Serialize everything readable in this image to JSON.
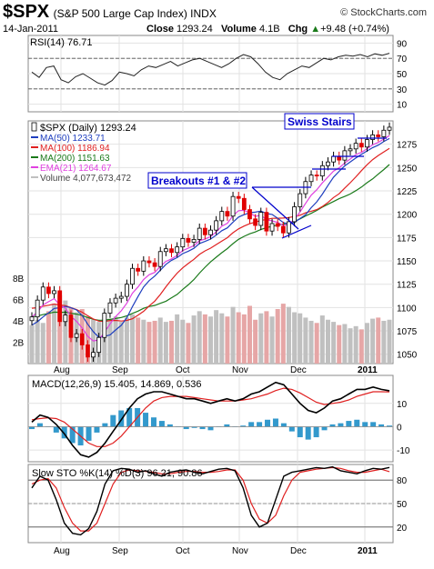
{
  "header": {
    "symbol": "$SPX",
    "name": "(S&P 500 Large Cap Index) INDX",
    "brand": "© StockCharts.com",
    "date": "14-Jan-2011",
    "close_label": "Close",
    "close_value": "1293.24",
    "volume_label": "Volume",
    "volume_value": "4.1B",
    "chg_label": "Chg",
    "chg_value": "+9.48 (+0.74%)",
    "chg_arrow": "▲"
  },
  "colors": {
    "ma50": "#1f3fbf",
    "ma100": "#e02020",
    "ma200": "#1a7a1a",
    "ema21": "#e040e0",
    "candle_up": "#000000",
    "candle_down": "#e00000",
    "volume_bar": "#c0c0c0",
    "annotation": "#0000cc",
    "macd_hist": "#3399cc"
  },
  "chart_data": [
    {
      "type": "line",
      "panel": "RSI",
      "title": "RSI(14) 76.71",
      "ylim": [
        0,
        100
      ],
      "yticks": [
        10,
        30,
        50,
        70,
        90
      ],
      "ref_lines": [
        30,
        70
      ],
      "series": [
        {
          "name": "RSI(14)",
          "values": [
            52,
            45,
            58,
            60,
            42,
            38,
            46,
            50,
            44,
            38,
            35,
            41,
            52,
            50,
            47,
            55,
            60,
            58,
            62,
            66,
            60,
            64,
            68,
            70,
            66,
            62,
            58,
            63,
            70,
            75,
            72,
            63,
            52,
            45,
            42,
            50,
            55,
            60,
            58,
            64,
            70,
            68,
            72,
            74,
            73,
            75,
            72,
            76,
            74,
            76.71
          ]
        }
      ]
    },
    {
      "type": "candlestick",
      "panel": "Price",
      "title": "$SPX (Daily) 1293.24",
      "ylim": [
        1040,
        1300
      ],
      "yticks": [
        1050,
        1075,
        1100,
        1125,
        1150,
        1175,
        1200,
        1225,
        1250,
        1275
      ],
      "x_tick_labels": [
        "Aug",
        "Sep",
        "Oct",
        "Nov",
        "Dec",
        "2011"
      ],
      "legend": [
        {
          "name": "$SPX (Daily) 1293.24",
          "swatch": "candle"
        },
        {
          "name": "MA(50) 1233.71",
          "color_key": "ma50"
        },
        {
          "name": "MA(100) 1186.94",
          "color_key": "ma100"
        },
        {
          "name": "MA(200) 1151.63",
          "color_key": "ma200"
        },
        {
          "name": "EMA(21) 1264.67",
          "color_key": "ema21"
        },
        {
          "name": "Volume 4,077,673,472",
          "color_key": "volume_bar"
        }
      ],
      "annotations": [
        "Swiss Stairs",
        "Breakouts #1 & #2"
      ],
      "close": [
        1090,
        1108,
        1122,
        1115,
        1118,
        1085,
        1092,
        1068,
        1072,
        1060,
        1047,
        1052,
        1068,
        1094,
        1105,
        1110,
        1112,
        1125,
        1142,
        1139,
        1150,
        1148,
        1144,
        1160,
        1163,
        1159,
        1165,
        1174,
        1170,
        1173,
        1185,
        1178,
        1183,
        1193,
        1203,
        1198,
        1219,
        1217,
        1205,
        1195,
        1188,
        1202,
        1182,
        1190,
        1187,
        1180,
        1192,
        1208,
        1222,
        1235,
        1242,
        1241,
        1252,
        1256,
        1262,
        1258,
        1268,
        1270,
        1276,
        1272,
        1280,
        1285,
        1283,
        1290,
        1293.24
      ],
      "volume_secondary_axis": {
        "ticks": [
          2,
          4,
          6,
          8
        ],
        "unit": "B"
      },
      "volume": [
        3.6,
        4.1,
        3.8,
        4.9,
        5.6,
        6.4,
        5.9,
        5.2,
        4.8,
        5.1,
        4.4,
        4.1,
        3.9,
        4.6,
        4.2,
        4.4,
        3.9,
        4.3,
        4.6,
        4.3,
        4.1,
        3.9,
        4.0,
        4.3,
        3.9,
        4.0,
        4.6,
        4.1,
        3.8,
        4.5,
        4.9,
        4.6,
        4.4,
        5.0,
        4.7,
        4.4,
        5.3,
        4.8,
        4.6,
        5.4,
        4.1,
        4.7,
        4.9,
        4.4,
        5.1,
        5.6,
        5.3,
        4.8,
        4.7,
        4.3,
        4.0,
        3.8,
        4.5,
        4.1,
        3.9,
        3.6,
        3.7,
        3.3,
        3.5,
        3.2,
        3.8,
        4.2,
        4.3,
        4.0,
        4.1
      ]
    },
    {
      "type": "line",
      "panel": "MACD",
      "title": "MACD(12,26,9) 15.405, 14.869, 0.536",
      "ylim": [
        -15,
        22
      ],
      "yticks": [
        -10,
        0,
        10
      ],
      "series": [
        {
          "name": "MACD",
          "values": [
            2,
            5,
            4,
            1,
            -3,
            -8,
            -12,
            -13,
            -11,
            -7,
            -2,
            3,
            8,
            12,
            14,
            15,
            15,
            14,
            13,
            12,
            12,
            11,
            10,
            11,
            12,
            11,
            12,
            14,
            15,
            17,
            19,
            18,
            14,
            10,
            7,
            6,
            8,
            11,
            12,
            14,
            16,
            16,
            17,
            16,
            15.4
          ]
        },
        {
          "name": "Signal",
          "values": [
            3,
            3.5,
            3.8,
            3.5,
            2,
            -1,
            -4,
            -7,
            -8.5,
            -8.5,
            -7,
            -4,
            0,
            4,
            8,
            11,
            12.5,
            13,
            13,
            13,
            12.5,
            12,
            11.5,
            11,
            11,
            11,
            11.5,
            12,
            13,
            14,
            15.5,
            16.5,
            16,
            14.5,
            12.5,
            10.5,
            9.5,
            10,
            10.5,
            11.5,
            13,
            14,
            15,
            15,
            14.9
          ]
        },
        {
          "name": "Histogram",
          "values": [
            -1,
            1.5,
            0.2,
            -2.5,
            -5,
            -7,
            -8,
            -6,
            -2.5,
            1.5,
            5,
            7,
            8,
            8,
            6,
            4,
            2.5,
            1,
            0,
            -1,
            -0.5,
            -1,
            -1.5,
            0,
            1,
            0,
            0.5,
            2,
            2,
            3,
            3.5,
            1.5,
            -2,
            -4.5,
            -5.5,
            -4.5,
            -1.5,
            1,
            1.5,
            2.5,
            3,
            2,
            2,
            1,
            0.5
          ]
        }
      ]
    },
    {
      "type": "line",
      "panel": "Slow STO",
      "title": "Slow STO %K(14) %D(3) 96.21, 90.86",
      "ylim": [
        0,
        100
      ],
      "yticks": [
        20,
        50,
        80
      ],
      "ref_lines": [
        20,
        80
      ],
      "series": [
        {
          "name": "%K(14)",
          "values": [
            70,
            85,
            80,
            55,
            25,
            12,
            10,
            18,
            40,
            75,
            92,
            95,
            94,
            90,
            92,
            88,
            85,
            90,
            92,
            93,
            90,
            88,
            91,
            94,
            95,
            92,
            70,
            35,
            20,
            25,
            55,
            85,
            90,
            92,
            94,
            96,
            95,
            97,
            92,
            90,
            88,
            92,
            95,
            94,
            96.21
          ]
        },
        {
          "name": "%D(3)",
          "values": [
            75,
            80,
            82,
            70,
            45,
            25,
            15,
            15,
            25,
            50,
            75,
            90,
            93,
            92,
            91,
            90,
            88,
            88,
            90,
            91,
            91,
            90,
            90,
            91,
            93,
            93,
            80,
            50,
            30,
            25,
            35,
            60,
            80,
            90,
            92,
            94,
            95,
            96,
            95,
            92,
            90,
            90,
            92,
            94,
            90.86
          ]
        }
      ]
    }
  ]
}
